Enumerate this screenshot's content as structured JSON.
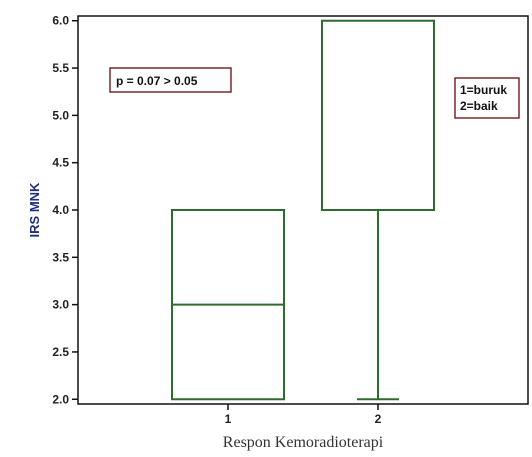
{
  "chart_data": {
    "type": "boxplot",
    "categories": [
      "1",
      "2"
    ],
    "boxes": [
      {
        "category": "1",
        "min": 2.0,
        "q1": 2.0,
        "median": 3.0,
        "q3": 4.0,
        "max": 4.0
      },
      {
        "category": "2",
        "min": 2.0,
        "q1": 4.0,
        "median": 4.0,
        "q3": 6.0,
        "max": 6.0
      }
    ],
    "xlabel": "Respon Kemoradioterapi",
    "ylabel": "IRS MNK",
    "ylim": [
      1.95,
      6.05
    ],
    "yticks": [
      "2.0",
      "2.5",
      "3.0",
      "3.5",
      "4.0",
      "4.5",
      "5.0",
      "5.5",
      "6.0"
    ],
    "xlim": [
      0.0,
      3.0
    ],
    "grid": false,
    "annotations": {
      "pvalue": "p = 0.07 > 0.05",
      "legend_line1": "1=buruk",
      "legend_line2": "2=baik"
    },
    "colors": {
      "box": "#2e6b2e",
      "axis": "#111111",
      "ylabel": "#1f2f7a",
      "xlabel": "#333333",
      "annotation_border": "#7a2a2a"
    }
  }
}
